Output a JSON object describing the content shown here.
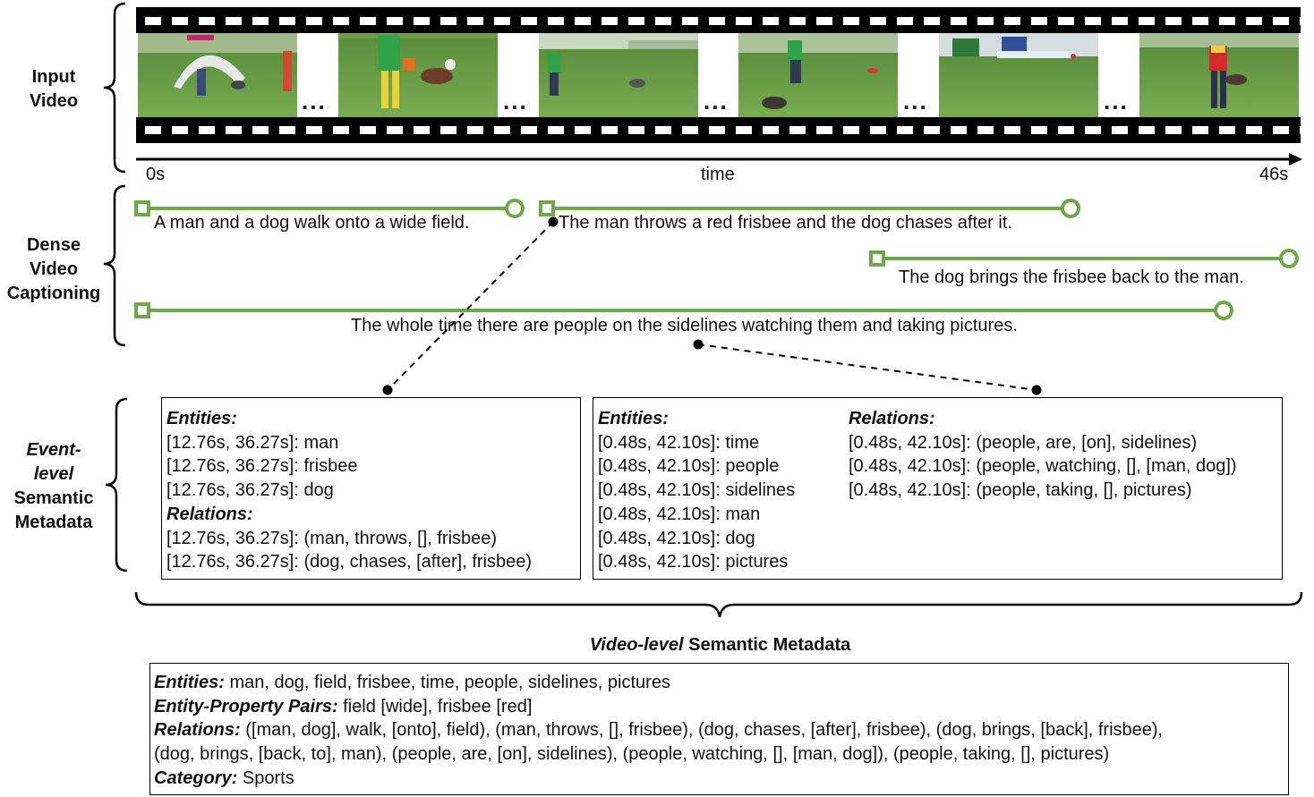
{
  "labels": {
    "input_video": [
      "Input",
      "Video"
    ],
    "dense_captioning": [
      "Dense",
      "Video",
      "Captioning"
    ],
    "event_metadata": [
      "Event-",
      "level",
      "Semantic",
      "Metadata"
    ]
  },
  "timeline": {
    "start": "0s",
    "axis": "time",
    "end": "46s"
  },
  "frames_ellipsis": "...",
  "captions": [
    "A man and a dog walk onto a wide field.",
    "The man throws a red frisbee and the dog chases after it.",
    "The dog brings the frisbee back to the man.",
    "The whole time there are people on the sidelines watching them and taking pictures."
  ],
  "event_box_1": {
    "entities_header": "Entities:",
    "entities": [
      "[12.76s, 36.27s]: man",
      "[12.76s, 36.27s]: frisbee",
      "[12.76s, 36.27s]: dog"
    ],
    "relations_header": "Relations:",
    "relations": [
      "[12.76s, 36.27s]: (man, throws, [], frisbee)",
      "[12.76s, 36.27s]: (dog, chases, [after], frisbee)"
    ]
  },
  "event_box_2": {
    "entities_header": "Entities:",
    "entities": [
      "[0.48s, 42.10s]: time",
      "[0.48s, 42.10s]: people",
      "[0.48s, 42.10s]: sidelines",
      "[0.48s, 42.10s]: man",
      "[0.48s, 42.10s]: dog",
      "[0.48s, 42.10s]: pictures"
    ],
    "relations_header": "Relations:",
    "relations": [
      "[0.48s, 42.10s]: (people, are, [on], sidelines)",
      "[0.48s, 42.10s]: (people, watching, [], [man, dog])",
      "[0.48s, 42.10s]: (people, taking, [], pictures)"
    ]
  },
  "video_level": {
    "title_italic": "Video-level",
    "title_rest": " Semantic Metadata",
    "entities_label": "Entities:",
    "entities_text": " man, dog, field, frisbee, time, people, sidelines, pictures",
    "pairs_label": "Entity-Property Pairs:",
    "pairs_text": " field [wide], frisbee [red]",
    "relations_label": "Relations:",
    "relations_line1": " ([man, dog], walk, [onto], field), (man, throws, [], frisbee), (dog, chases, [after], frisbee), (dog, brings, [back], frisbee),",
    "relations_line2": "(dog, brings, [back, to], man), (people, are, [on], sidelines), (people, watching, [], [man, dog]), (people, taking, [], pictures)",
    "category_label": "Category:",
    "category_text": " Sports"
  },
  "colors": {
    "caption_line": "#6ea84b"
  }
}
